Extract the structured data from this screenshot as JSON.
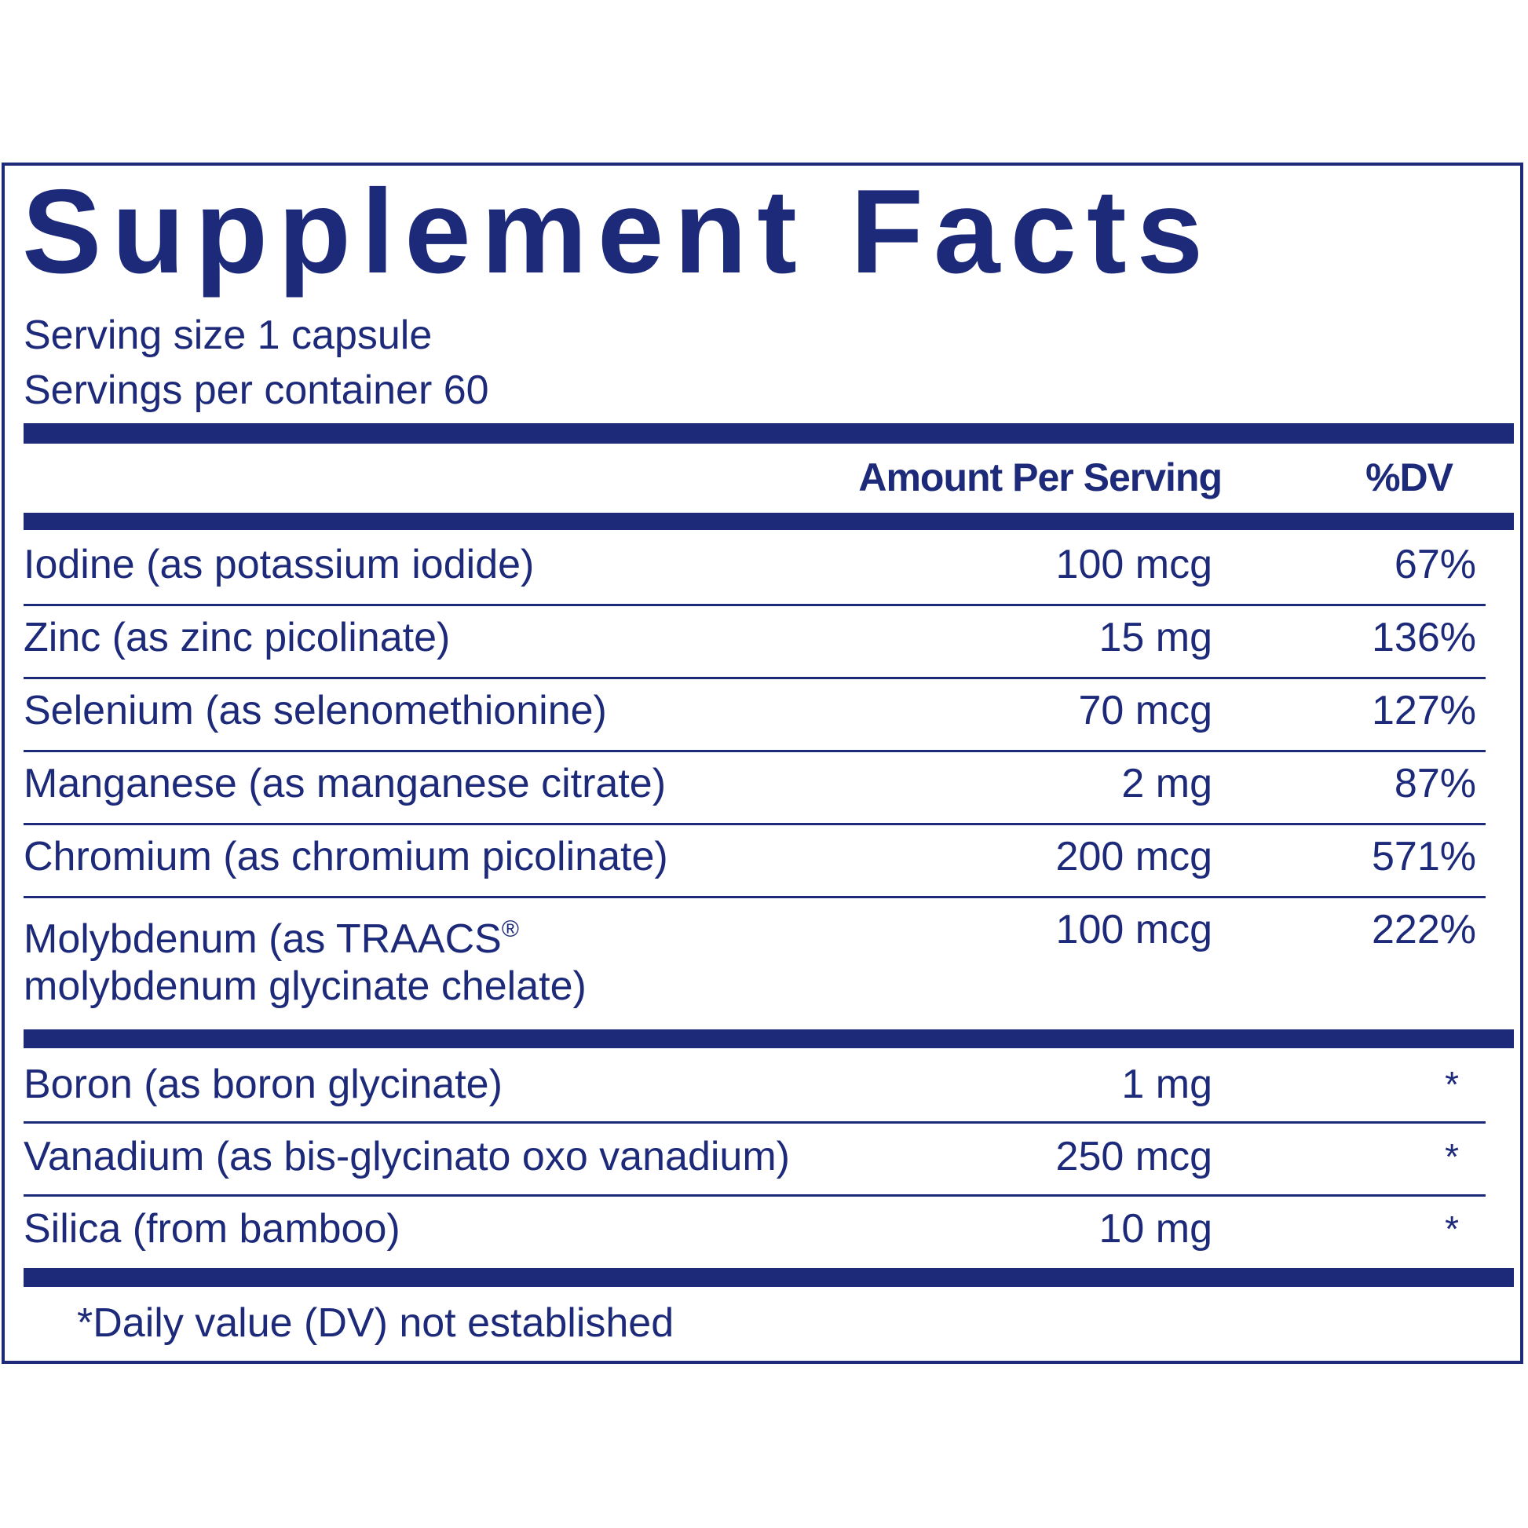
{
  "title": "Supplement Facts",
  "serving_size": "Serving size  1 capsule",
  "servings_per_container": "Servings per container  60",
  "headers": {
    "amount": "Amount Per Serving",
    "dv": "%DV"
  },
  "nutrients": [
    {
      "name": "Iodine (as potassium iodide)",
      "amount": "100 mcg",
      "dv": "67%"
    },
    {
      "name": "Zinc (as zinc picolinate)",
      "amount": "15 mg",
      "dv": "136%"
    },
    {
      "name": "Selenium (as selenomethionine)",
      "amount": "70 mcg",
      "dv": "127%"
    },
    {
      "name": "Manganese (as manganese citrate)",
      "amount": "2 mg",
      "dv": "87%"
    },
    {
      "name": "Chromium (as chromium picolinate)",
      "amount": "200 mcg",
      "dv": "571%"
    },
    {
      "name_line1": "Molybdenum (as TRAACS",
      "name_reg": "®",
      "name_line2": "molybdenum glycinate chelate)",
      "amount": "100 mcg",
      "dv": "222%"
    }
  ],
  "other": [
    {
      "name": "Boron (as boron glycinate)",
      "amount": "1 mg",
      "dv": "*"
    },
    {
      "name": "Vanadium (as bis-glycinato oxo vanadium)",
      "amount": "250 mcg",
      "dv": "*"
    },
    {
      "name": "Silica (from bamboo)",
      "amount": "10 mg",
      "dv": "*"
    }
  ],
  "footnote": "*Daily value (DV) not established",
  "colors": {
    "label_blue": "#1d2a7a",
    "background": "#ffffff"
  }
}
